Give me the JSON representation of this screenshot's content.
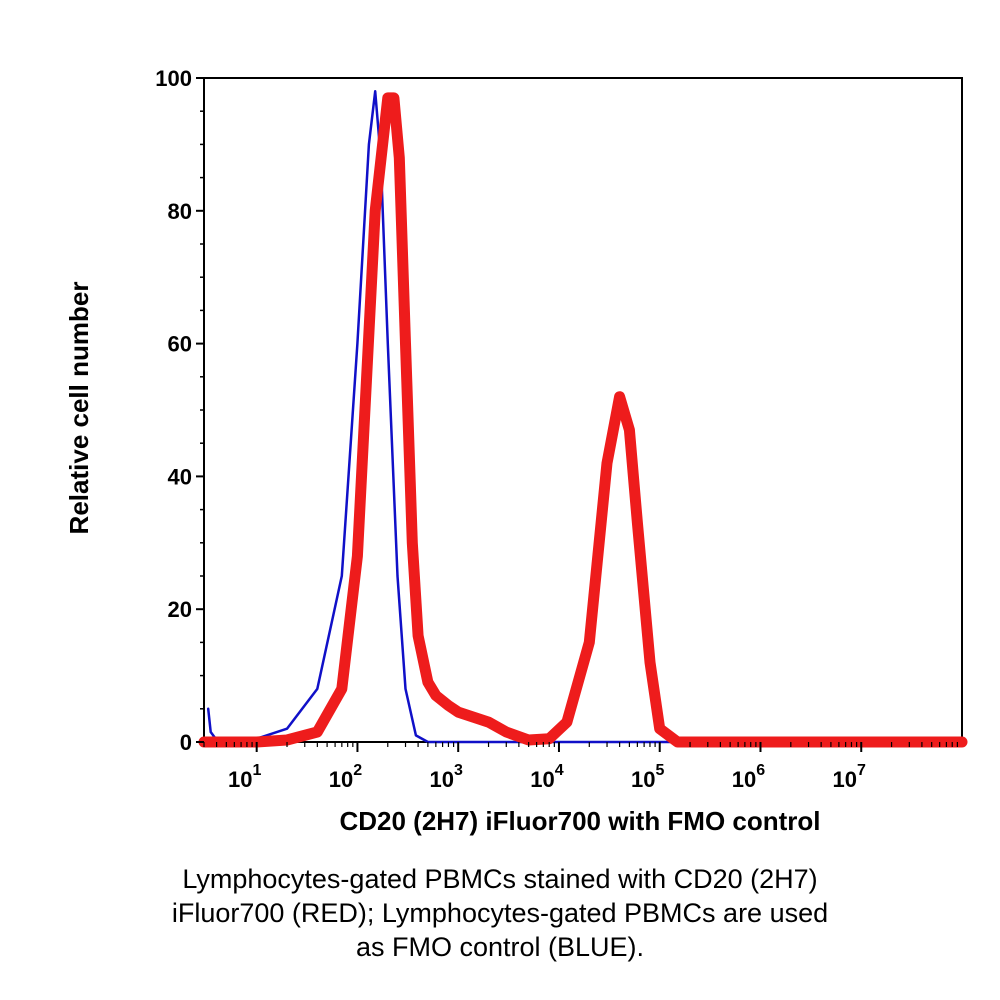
{
  "chart_data": {
    "type": "line",
    "xlabel": "CD20 (2H7) iFluor700 with FMO control",
    "ylabel": "Relative cell number",
    "xscale": "log",
    "xlim": [
      3,
      100000000
    ],
    "ylim": [
      0,
      100
    ],
    "x_ticks": [
      {
        "base": "10",
        "exp": "1",
        "value": 10
      },
      {
        "base": "10",
        "exp": "2",
        "value": 100
      },
      {
        "base": "10",
        "exp": "3",
        "value": 1000
      },
      {
        "base": "10",
        "exp": "4",
        "value": 10000
      },
      {
        "base": "10",
        "exp": "5",
        "value": 100000
      },
      {
        "base": "10",
        "exp": "6",
        "value": 1000000
      },
      {
        "base": "10",
        "exp": "7",
        "value": 10000000
      }
    ],
    "y_ticks": [
      "0",
      "20",
      "40",
      "60",
      "80",
      "100"
    ],
    "grid": false,
    "series": [
      {
        "color": "#1010c8",
        "x": [
          3.3,
          3.5,
          4,
          6,
          10,
          20,
          40,
          70,
          100,
          130,
          150,
          170,
          200,
          250,
          300,
          380,
          500,
          1000,
          1000000,
          100000000
        ],
        "y": [
          5,
          1.5,
          0.3,
          0,
          0.5,
          2,
          8,
          25,
          60,
          90,
          98,
          88,
          60,
          25,
          8,
          1,
          0,
          0,
          0,
          0
        ]
      },
      {
        "color": "#ee1c1c",
        "x": [
          3,
          10,
          20,
          40,
          70,
          100,
          150,
          200,
          230,
          260,
          300,
          350,
          400,
          500,
          600,
          800,
          1000,
          2000,
          3000,
          5000,
          8000,
          12000,
          20000,
          30000,
          40000,
          50000,
          60000,
          80000,
          100000,
          150000,
          1000000,
          100000000
        ],
        "y": [
          0,
          0,
          0.3,
          1.5,
          8,
          28,
          80,
          97,
          97,
          88,
          60,
          30,
          16,
          9,
          7,
          5.5,
          4.5,
          3,
          1.5,
          0.3,
          0.5,
          3,
          15,
          42,
          52,
          47,
          33,
          12,
          2,
          0,
          0,
          0
        ]
      }
    ]
  },
  "caption": {
    "lines": [
      "Lymphocytes-gated PBMCs stained with CD20 (2H7)",
      "iFluor700 (RED); Lymphocytes-gated PBMCs are used",
      "as FMO control (BLUE)."
    ]
  }
}
